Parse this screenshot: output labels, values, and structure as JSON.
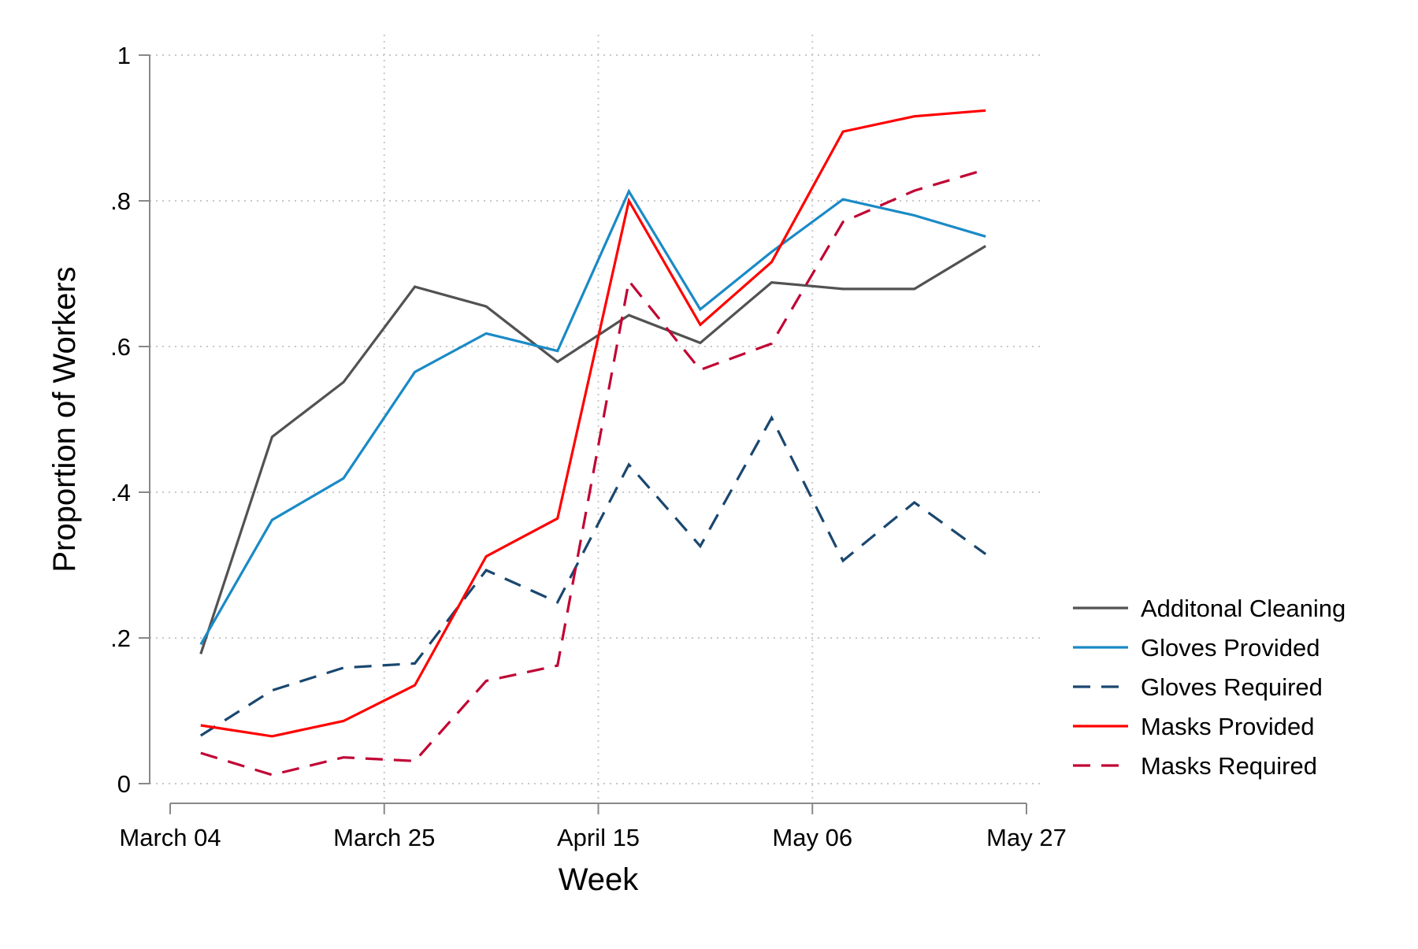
{
  "chart_data": {
    "type": "line",
    "title": "",
    "xlabel": "Week",
    "ylabel": "Proportion of Workers",
    "x_ticks": [
      "March 04",
      "March 25",
      "April 15",
      "May 06",
      "May 27"
    ],
    "x_tick_values": [
      "2020-03-04",
      "2020-03-25",
      "2020-04-15",
      "2020-05-06",
      "2020-05-27"
    ],
    "x": [
      "2020-03-07",
      "2020-03-14",
      "2020-03-21",
      "2020-03-28",
      "2020-04-04",
      "2020-04-11",
      "2020-04-18",
      "2020-04-25",
      "2020-05-02",
      "2020-05-09",
      "2020-05-16",
      "2020-05-23"
    ],
    "y_ticks": [
      "0",
      ".2",
      ".4",
      ".6",
      ".8",
      "1"
    ],
    "y_tick_values": [
      0,
      0.2,
      0.4,
      0.6,
      0.8,
      1
    ],
    "xlim": [
      "2020-03-04",
      "2020-05-27"
    ],
    "ylim": [
      0,
      1
    ],
    "grid": true,
    "legend_position": "right",
    "series": [
      {
        "name": "Additonal Cleaning",
        "color": "#525252",
        "dash": "solid",
        "values": [
          0.178,
          0.476,
          0.551,
          0.682,
          0.655,
          0.579,
          0.643,
          0.605,
          0.688,
          0.679,
          0.679,
          0.738
        ]
      },
      {
        "name": "Gloves Provided",
        "color": "#1a8ac6",
        "dash": "solid",
        "values": [
          0.191,
          0.362,
          0.419,
          0.565,
          0.618,
          0.594,
          0.813,
          0.651,
          0.73,
          0.802,
          0.78,
          0.751
        ]
      },
      {
        "name": "Gloves Required",
        "color": "#1a476f",
        "dash": "dashed",
        "values": [
          0.066,
          0.128,
          0.159,
          0.165,
          0.293,
          0.249,
          0.438,
          0.326,
          0.502,
          0.306,
          0.386,
          0.315
        ]
      },
      {
        "name": "Masks Provided",
        "color": "#ff0000",
        "dash": "solid",
        "values": [
          0.08,
          0.065,
          0.086,
          0.135,
          0.312,
          0.364,
          0.8,
          0.63,
          0.716,
          0.895,
          0.916,
          0.924
        ]
      },
      {
        "name": "Masks Required",
        "color": "#c10534",
        "dash": "dashed",
        "values": [
          0.042,
          0.012,
          0.036,
          0.031,
          0.141,
          0.162,
          0.69,
          0.568,
          0.604,
          0.771,
          0.814,
          0.843
        ]
      }
    ]
  }
}
